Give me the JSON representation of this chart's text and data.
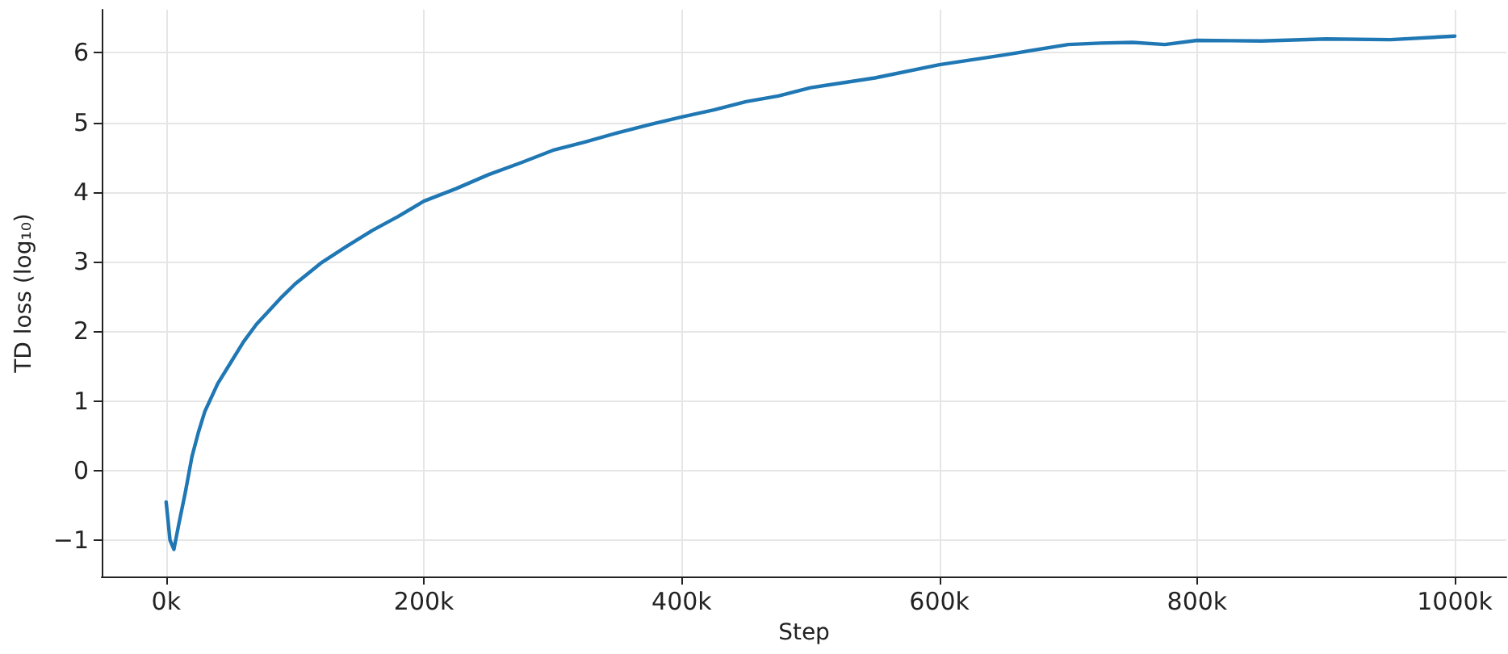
{
  "chart_data": {
    "type": "line",
    "xlabel": "Step",
    "ylabel": "TD loss (log₁₀)",
    "x": [
      0,
      3000,
      6000,
      10000,
      15000,
      20000,
      25000,
      30000,
      40000,
      50000,
      60000,
      70000,
      80000,
      90000,
      100000,
      120000,
      140000,
      160000,
      180000,
      200000,
      225000,
      250000,
      275000,
      300000,
      325000,
      350000,
      375000,
      400000,
      425000,
      450000,
      475000,
      500000,
      550000,
      600000,
      650000,
      700000,
      725000,
      750000,
      775000,
      800000,
      850000,
      900000,
      950000,
      1000000
    ],
    "series": [
      {
        "color": "#1f77b4",
        "values": [
          -0.45,
          -1.0,
          -1.13,
          -0.75,
          -0.3,
          0.2,
          0.55,
          0.85,
          1.25,
          1.55,
          1.85,
          2.1,
          2.3,
          2.5,
          2.68,
          2.98,
          3.22,
          3.45,
          3.65,
          3.87,
          4.05,
          4.25,
          4.42,
          4.6,
          4.72,
          4.85,
          4.97,
          5.08,
          5.18,
          5.3,
          5.38,
          5.5,
          5.64,
          5.83,
          5.97,
          6.12,
          6.14,
          6.15,
          6.12,
          6.18,
          6.17,
          6.2,
          6.19,
          6.24
        ]
      }
    ],
    "xlim": [
      -50000,
      1040000
    ],
    "ylim": [
      -1.52,
      6.62
    ],
    "xticks": [
      {
        "value": 0,
        "label": "0k"
      },
      {
        "value": 200000,
        "label": "200k"
      },
      {
        "value": 400000,
        "label": "400k"
      },
      {
        "value": 600000,
        "label": "600k"
      },
      {
        "value": 800000,
        "label": "800k"
      },
      {
        "value": 1000000,
        "label": "1000k"
      }
    ],
    "yticks": [
      {
        "value": -1,
        "label": "−1"
      },
      0,
      1,
      2,
      3,
      4,
      5,
      6
    ],
    "grid": true,
    "marker": "none",
    "line_style": "solid"
  }
}
